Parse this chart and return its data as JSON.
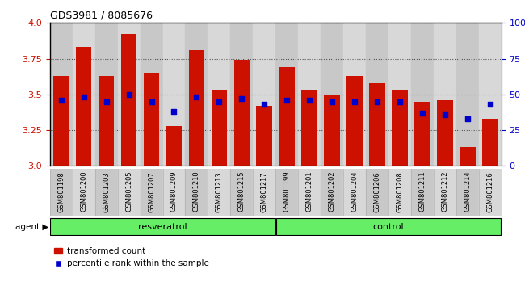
{
  "title": "GDS3981 / 8085676",
  "categories": [
    "GSM801198",
    "GSM801200",
    "GSM801203",
    "GSM801205",
    "GSM801207",
    "GSM801209",
    "GSM801210",
    "GSM801213",
    "GSM801215",
    "GSM801217",
    "GSM801199",
    "GSM801201",
    "GSM801202",
    "GSM801204",
    "GSM801206",
    "GSM801208",
    "GSM801211",
    "GSM801212",
    "GSM801214",
    "GSM801216"
  ],
  "bar_values": [
    3.63,
    3.83,
    3.63,
    3.92,
    3.65,
    3.28,
    3.81,
    3.53,
    3.74,
    3.42,
    3.69,
    3.53,
    3.5,
    3.63,
    3.58,
    3.53,
    3.45,
    3.46,
    3.13,
    3.33
  ],
  "percentile_values": [
    46,
    48,
    45,
    50,
    45,
    38,
    48,
    45,
    47,
    43,
    46,
    46,
    45,
    45,
    45,
    45,
    37,
    36,
    33,
    43
  ],
  "group_labels": [
    "resveratrol",
    "control"
  ],
  "group_sizes": [
    10,
    10
  ],
  "group_color": "#66ee66",
  "bar_color": "#cc1100",
  "percentile_color": "#0000cc",
  "ylim_left": [
    3.0,
    4.0
  ],
  "ylim_right": [
    0,
    100
  ],
  "yticks_left": [
    3.0,
    3.25,
    3.5,
    3.75,
    4.0
  ],
  "yticks_right": [
    0,
    25,
    50,
    75,
    100
  ],
  "legend_items": [
    "transformed count",
    "percentile rank within the sample"
  ]
}
